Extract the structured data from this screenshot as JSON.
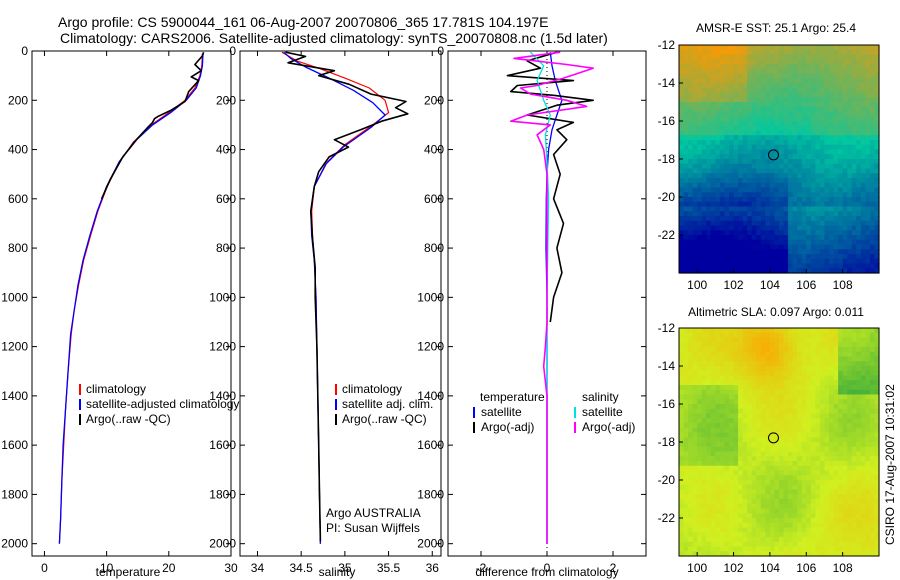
{
  "header": {
    "title_line1": "Argo profile: CS 5900044_161 06-Aug-2007 20070806_365 17.781S 104.197E",
    "title_line2": "Climatology: CARS2006. Satellite-adjusted climatology: synTS_20070808.nc (1.5d later)"
  },
  "side_label": "CSIRO 17-Aug-2007 10:31:02",
  "chart_data": [
    {
      "type": "line",
      "xlabel": "temperature",
      "ylabel": "",
      "xlim": [
        -2,
        30
      ],
      "ylim": [
        2050,
        0
      ],
      "xticks": [
        0,
        10,
        20,
        30
      ],
      "yticks": [
        0,
        200,
        400,
        600,
        800,
        1000,
        1200,
        1400,
        1600,
        1800,
        2000
      ],
      "legend": {
        "location": "lower-right",
        "entries": [
          "climatology",
          "satellite-adjusted climatology",
          "Argo(..raw -QC)"
        ]
      },
      "series": [
        {
          "name": "climatology",
          "color": "#ff0000",
          "width": 1.2,
          "points": [
            [
              25.4,
              10
            ],
            [
              25.3,
              60
            ],
            [
              25.0,
              100
            ],
            [
              24.2,
              150
            ],
            [
              22.6,
              200
            ],
            [
              20.0,
              250
            ],
            [
              17.2,
              300
            ],
            [
              14.3,
              370
            ],
            [
              12.1,
              450
            ],
            [
              10.1,
              550
            ],
            [
              8.6,
              650
            ],
            [
              7.4,
              750
            ],
            [
              6.3,
              850
            ],
            [
              5.5,
              950
            ],
            [
              4.8,
              1050
            ],
            [
              4.3,
              1150
            ],
            [
              3.8,
              1300
            ],
            [
              3.4,
              1450
            ],
            [
              3.1,
              1600
            ],
            [
              2.8,
              1750
            ],
            [
              2.6,
              1900
            ],
            [
              2.4,
              2000
            ]
          ]
        },
        {
          "name": "satellite-adjusted climatology",
          "color": "#0000ff",
          "width": 1.3,
          "points": [
            [
              25.5,
              10
            ],
            [
              25.4,
              60
            ],
            [
              25.1,
              100
            ],
            [
              24.4,
              150
            ],
            [
              22.8,
              200
            ],
            [
              20.3,
              250
            ],
            [
              17.4,
              300
            ],
            [
              14.4,
              370
            ],
            [
              12.0,
              450
            ],
            [
              10.0,
              550
            ],
            [
              8.5,
              650
            ],
            [
              7.3,
              750
            ],
            [
              6.2,
              850
            ],
            [
              5.4,
              950
            ],
            [
              4.8,
              1050
            ],
            [
              4.2,
              1150
            ],
            [
              3.8,
              1300
            ],
            [
              3.4,
              1450
            ],
            [
              3.0,
              1600
            ],
            [
              2.8,
              1750
            ],
            [
              2.6,
              1900
            ],
            [
              2.4,
              2000
            ]
          ]
        },
        {
          "name": "Argo(..raw -QC)",
          "color": "#000000",
          "width": 1.6,
          "points": [
            [
              25.6,
              5
            ],
            [
              25.4,
              20
            ],
            [
              24.2,
              55
            ],
            [
              25.2,
              80
            ],
            [
              23.6,
              105
            ],
            [
              24.8,
              120
            ],
            [
              23.2,
              165
            ],
            [
              22.6,
              205
            ],
            [
              20.4,
              240
            ],
            [
              18.3,
              265
            ],
            [
              17.7,
              275
            ],
            [
              17.4,
              290
            ],
            [
              16.6,
              310
            ],
            [
              14.8,
              360
            ],
            [
              12.6,
              430
            ],
            [
              10.6,
              520
            ],
            [
              9.2,
              600
            ]
          ]
        }
      ]
    },
    {
      "type": "line",
      "xlabel": "salinity",
      "ylabel": "",
      "xlim": [
        33.8,
        36.1
      ],
      "ylim": [
        2050,
        0
      ],
      "xticks": [
        34,
        34.5,
        35,
        35.5,
        36
      ],
      "yticks": [
        0,
        200,
        400,
        600,
        800,
        1000,
        1200,
        1400,
        1600,
        1800,
        2000
      ],
      "legend": {
        "location": "lower-right",
        "entries": [
          "climatology",
          "satellite adj. clim.",
          "Argo(..raw -QC)"
        ]
      },
      "annotation": [
        "Argo AUSTRALIA",
        "PI: Susan Wijffels"
      ],
      "series": [
        {
          "name": "climatology",
          "color": "#ff0000",
          "width": 1.2,
          "points": [
            [
              34.28,
              5
            ],
            [
              34.45,
              40
            ],
            [
              34.7,
              70
            ],
            [
              35.0,
              110
            ],
            [
              35.28,
              150
            ],
            [
              35.46,
              200
            ],
            [
              35.5,
              250
            ],
            [
              35.32,
              300
            ],
            [
              35.0,
              380
            ],
            [
              34.8,
              450
            ],
            [
              34.65,
              550
            ],
            [
              34.62,
              650
            ],
            [
              34.63,
              750
            ],
            [
              34.65,
              850
            ],
            [
              34.67,
              1000
            ],
            [
              34.68,
              1200
            ],
            [
              34.69,
              1400
            ],
            [
              34.7,
              1600
            ],
            [
              34.71,
              1800
            ],
            [
              34.72,
              2000
            ]
          ]
        },
        {
          "name": "satellite adj. clim.",
          "color": "#0000ff",
          "width": 1.3,
          "points": [
            [
              34.3,
              5
            ],
            [
              34.38,
              30
            ],
            [
              34.55,
              65
            ],
            [
              34.82,
              110
            ],
            [
              35.1,
              160
            ],
            [
              35.32,
              210
            ],
            [
              35.46,
              260
            ],
            [
              35.3,
              310
            ],
            [
              34.98,
              390
            ],
            [
              34.78,
              460
            ],
            [
              34.65,
              550
            ],
            [
              34.61,
              650
            ],
            [
              34.62,
              750
            ],
            [
              34.65,
              850
            ],
            [
              34.67,
              1000
            ],
            [
              34.68,
              1200
            ],
            [
              34.69,
              1400
            ],
            [
              34.7,
              1600
            ],
            [
              34.71,
              1800
            ],
            [
              34.72,
              2000
            ]
          ]
        },
        {
          "name": "Argo(..raw -QC)",
          "color": "#000000",
          "width": 1.6,
          "points": [
            [
              34.32,
              5
            ],
            [
              34.55,
              22
            ],
            [
              34.35,
              48
            ],
            [
              34.88,
              80
            ],
            [
              34.7,
              100
            ],
            [
              35.05,
              135
            ],
            [
              35.3,
              175
            ],
            [
              35.7,
              205
            ],
            [
              35.58,
              230
            ],
            [
              35.72,
              255
            ],
            [
              35.42,
              285
            ],
            [
              35.18,
              320
            ],
            [
              34.88,
              360
            ],
            [
              35.04,
              390
            ],
            [
              34.82,
              430
            ],
            [
              34.7,
              490
            ],
            [
              34.65,
              550
            ],
            [
              34.61,
              650
            ],
            [
              34.63,
              760
            ],
            [
              34.66,
              880
            ],
            [
              34.66,
              1000
            ],
            [
              34.68,
              1200
            ],
            [
              34.69,
              1400
            ],
            [
              34.7,
              1600
            ],
            [
              34.71,
              1800
            ],
            [
              34.72,
              1990
            ]
          ]
        }
      ]
    },
    {
      "type": "line",
      "xlabel": "difference from climatology",
      "ylabel": "",
      "xlim": [
        -3,
        3
      ],
      "ylim": [
        2050,
        0
      ],
      "xticks": [
        -2,
        0,
        2
      ],
      "yticks": [
        0,
        200,
        400,
        600,
        800,
        1000,
        1200,
        1400,
        1600,
        1800,
        2000
      ],
      "legend": {
        "location": "lower-center",
        "temperature_header": "temperature",
        "salinity_header": "salinity",
        "entries": [
          "satellite",
          "Argo(-adj)",
          "satellite",
          "Argo(-adj)"
        ]
      },
      "series": [
        {
          "name": "temperature satellite",
          "color": "#0000ff",
          "width": 1.3,
          "points": [
            [
              0.1,
              5
            ],
            [
              0.15,
              60
            ],
            [
              0.25,
              120
            ],
            [
              0.35,
              160
            ],
            [
              0.45,
              200
            ],
            [
              0.3,
              260
            ],
            [
              0.15,
              320
            ],
            [
              0.05,
              400
            ],
            [
              0.0,
              500
            ],
            [
              -0.02,
              600
            ],
            [
              -0.03,
              800
            ],
            [
              0.0,
              1000
            ],
            [
              0.0,
              1500
            ],
            [
              0.0,
              2000
            ]
          ]
        },
        {
          "name": "temperature Argo(-adj)",
          "color": "#000000",
          "width": 1.6,
          "points": [
            [
              0.3,
              5
            ],
            [
              -0.6,
              40
            ],
            [
              -0.2,
              70
            ],
            [
              -1.2,
              100
            ],
            [
              0.8,
              120
            ],
            [
              -0.9,
              140
            ],
            [
              -1.1,
              165
            ],
            [
              0.2,
              180
            ],
            [
              1.4,
              200
            ],
            [
              0.3,
              220
            ],
            [
              -0.6,
              260
            ],
            [
              0.8,
              290
            ],
            [
              0.3,
              320
            ],
            [
              0.6,
              360
            ],
            [
              0.2,
              420
            ],
            [
              0.4,
              500
            ],
            [
              0.2,
              600
            ],
            [
              0.5,
              700
            ],
            [
              0.3,
              800
            ],
            [
              0.45,
              900
            ],
            [
              0.2,
              1000
            ],
            [
              0.1,
              1100
            ]
          ]
        },
        {
          "name": "salinity satellite",
          "color": "#00e0e0",
          "width": 1.3,
          "points": [
            [
              -0.5,
              5
            ],
            [
              -0.1,
              60
            ],
            [
              -0.3,
              120
            ],
            [
              -0.1,
              200
            ],
            [
              0.1,
              260
            ],
            [
              -0.05,
              340
            ],
            [
              0.0,
              450
            ],
            [
              0.05,
              600
            ],
            [
              0.0,
              1000
            ],
            [
              0.0,
              1500
            ],
            [
              0.0,
              1990
            ]
          ]
        },
        {
          "name": "salinity Argo(-adj)",
          "color": "#ff00ff",
          "width": 1.6,
          "points": [
            [
              0.4,
              5
            ],
            [
              -1.0,
              30
            ],
            [
              0.6,
              55
            ],
            [
              1.4,
              70
            ],
            [
              0.5,
              110
            ],
            [
              -0.3,
              140
            ],
            [
              -0.8,
              150
            ],
            [
              -0.5,
              175
            ],
            [
              0.6,
              200
            ],
            [
              1.2,
              225
            ],
            [
              -0.6,
              260
            ],
            [
              -1.1,
              285
            ],
            [
              0.1,
              300
            ],
            [
              -0.3,
              340
            ],
            [
              -0.1,
              400
            ],
            [
              -0.05,
              450
            ],
            [
              0.0,
              500
            ],
            [
              0.0,
              1000
            ],
            [
              0.0,
              1100
            ],
            [
              -0.05,
              1200
            ],
            [
              -0.1,
              1280
            ],
            [
              0.0,
              1400
            ],
            [
              0.0,
              2000
            ]
          ]
        }
      ]
    },
    {
      "type": "heatmap",
      "title": "AMSR-E SST: 25.1 Argo: 25.4",
      "xlim": [
        99,
        110
      ],
      "ylim": [
        -24,
        -12
      ],
      "xticks": [
        100,
        102,
        104,
        106,
        108
      ],
      "yticks": [
        -12,
        -14,
        -16,
        -18,
        -20,
        -22
      ],
      "marker": {
        "lon": 104.197,
        "lat": -17.781
      },
      "colors": {
        "low": "#0000a0",
        "mid": "#00c8a0",
        "high": "#ff9900"
      }
    },
    {
      "type": "heatmap",
      "title": "Altimetric SLA: 0.097 Argo: 0.011",
      "xlim": [
        99,
        110
      ],
      "ylim": [
        -24,
        -12
      ],
      "xticks": [
        100,
        102,
        104,
        106,
        108
      ],
      "yticks": [
        -12,
        -14,
        -16,
        -18,
        -20,
        -22
      ],
      "marker": {
        "lon": 104.197,
        "lat": -17.781
      },
      "colors": {
        "low": "#20a040",
        "mid": "#d0f020",
        "high": "#ffa000"
      }
    }
  ]
}
